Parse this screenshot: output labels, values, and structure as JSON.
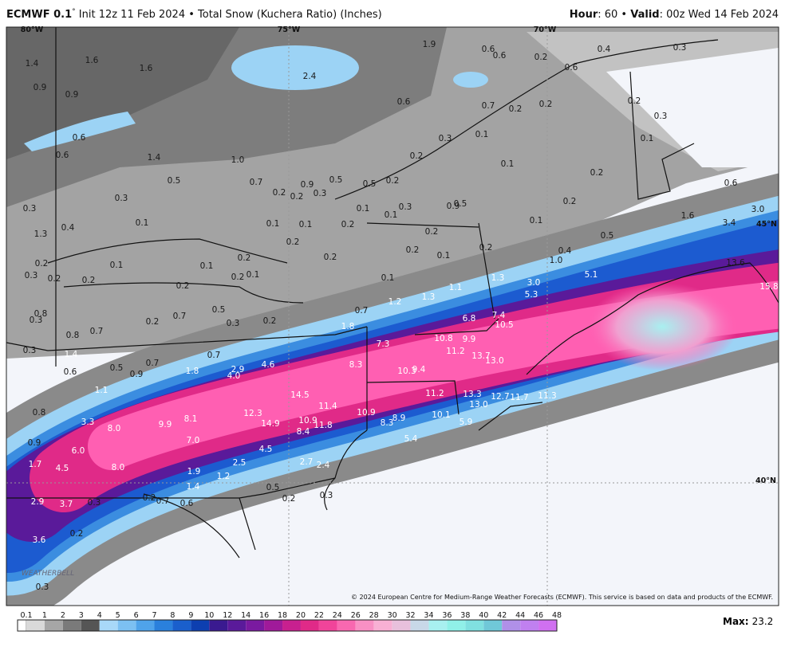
{
  "header": {
    "model": "ECMWF 0.1",
    "degree": "°",
    "description": " Init 12z 11 Feb 2024 • Total Snow (Kuchera Ratio) (Inches)",
    "hour_label": "Hour",
    "hour_text": ": 60 • ",
    "valid_label": "Valid",
    "valid_text": ": 00z Wed 14 Feb 2024"
  },
  "map": {
    "graticule_labels": [
      "80°W",
      "75°W",
      "70°W",
      "45°N",
      "40°N"
    ],
    "labels": [
      "1.4",
      "1.6",
      "1.6",
      "2.4",
      "1.9",
      "0.6",
      "0.6",
      "0.2",
      "0.6",
      "0.4",
      "0.3",
      "0.9",
      "0.9",
      "0.6",
      "0.7",
      "0.2",
      "0.2",
      "0.2",
      "0.3",
      "0.6",
      "0.3",
      "0.1",
      "0.1",
      "0.6",
      "1.4",
      "1.0",
      "0.2",
      "0.1",
      "0.5",
      "0.7",
      "0.9",
      "0.5",
      "0.2",
      "0.2",
      "0.6",
      "0.3",
      "0.2",
      "0.2",
      "0.3",
      "0.5",
      "0.3",
      "0.1",
      "0.3",
      "0.9",
      "0.5",
      "0.2",
      "0.1",
      "0.1",
      "0.1",
      "0.2",
      "0.1",
      "0.1",
      "1.6",
      "3.0",
      "0.4",
      "1.3",
      "3.4",
      "0.2",
      "0.5",
      "0.2",
      "0.2",
      "0.2",
      "0.4",
      "0.2",
      "0.1",
      "1.0",
      "13.6",
      "0.2",
      "0.1",
      "0.1",
      "0.2",
      "0.3",
      "0.2",
      "0.2",
      "0.2",
      "0.1",
      "0.1",
      "1.1",
      "1.3",
      "3.0",
      "5.1",
      "15.8",
      "0.2",
      "5.3",
      "0.8",
      "0.3",
      "0.5",
      "1.2",
      "1.3",
      "0.7",
      "0.2",
      "0.7",
      "0.3",
      "0.2",
      "6.8",
      "7.4",
      "10.5",
      "1.8",
      "0.8",
      "0.7",
      "0.3",
      "1.4",
      "0.7",
      "7.3",
      "10.8",
      "9.9",
      "11.2",
      "13.7",
      "13.0",
      "0.7",
      "0.6",
      "0.5",
      "0.9",
      "1.8",
      "2.9",
      "4.0",
      "4.6",
      "8.3",
      "10.3",
      "9.4",
      "1.1",
      "14.5",
      "11.4",
      "11.2",
      "13.3",
      "12.7",
      "11.7",
      "11.3",
      "0.8",
      "12.3",
      "10.9",
      "10.1",
      "13.0",
      "3.3",
      "9.9",
      "8.1",
      "14.9",
      "10.9",
      "11.8",
      "8.3",
      "8.9",
      "5.9",
      "8.0",
      "8.4",
      "0.9",
      "7.0",
      "5.4",
      "6.0",
      "4.5",
      "1.7",
      "4.5",
      "8.0",
      "2.5",
      "2.7",
      "2.4",
      "1.9",
      "1.2",
      "1.4",
      "0.5",
      "2.9",
      "3.7",
      "0.3",
      "0.2",
      "0.7",
      "0.6",
      "0.2",
      "0.3",
      "0.2",
      "3.6",
      "0.3"
    ],
    "copyright": "© 2024 European Centre for Medium-Range Weather Forecasts (ECMWF). This service is based on data and products of the ECMWF.",
    "logo": "WEATHERBELL"
  },
  "legend": {
    "ticks": [
      "0.1",
      "1",
      "2",
      "3",
      "4",
      "5",
      "6",
      "7",
      "8",
      "9",
      "10",
      "12",
      "14",
      "16",
      "18",
      "20",
      "22",
      "24",
      "26",
      "28",
      "30",
      "32",
      "34",
      "36",
      "38",
      "40",
      "42",
      "44",
      "46",
      "48"
    ],
    "colors": [
      "#d9d9d9",
      "#a6a6a6",
      "#7a7a7a",
      "#555555",
      "#a8d8f8",
      "#7cc0f2",
      "#4fa3ea",
      "#2a80dc",
      "#1a5fcc",
      "#0d3fb0",
      "#3a1a90",
      "#5a1a9a",
      "#7a1aa0",
      "#a01a9a",
      "#c8208f",
      "#e02a88",
      "#f0449a",
      "#f868b0",
      "#f890c4",
      "#f8b0d4",
      "#e8c0dc",
      "#c8d8e8",
      "#a8f0f0",
      "#90f0e8",
      "#80e0e0",
      "#70c8d8",
      "#b090e8",
      "#c080f0",
      "#d070f0"
    ],
    "max_label": "Max:",
    "max": "23.2"
  }
}
